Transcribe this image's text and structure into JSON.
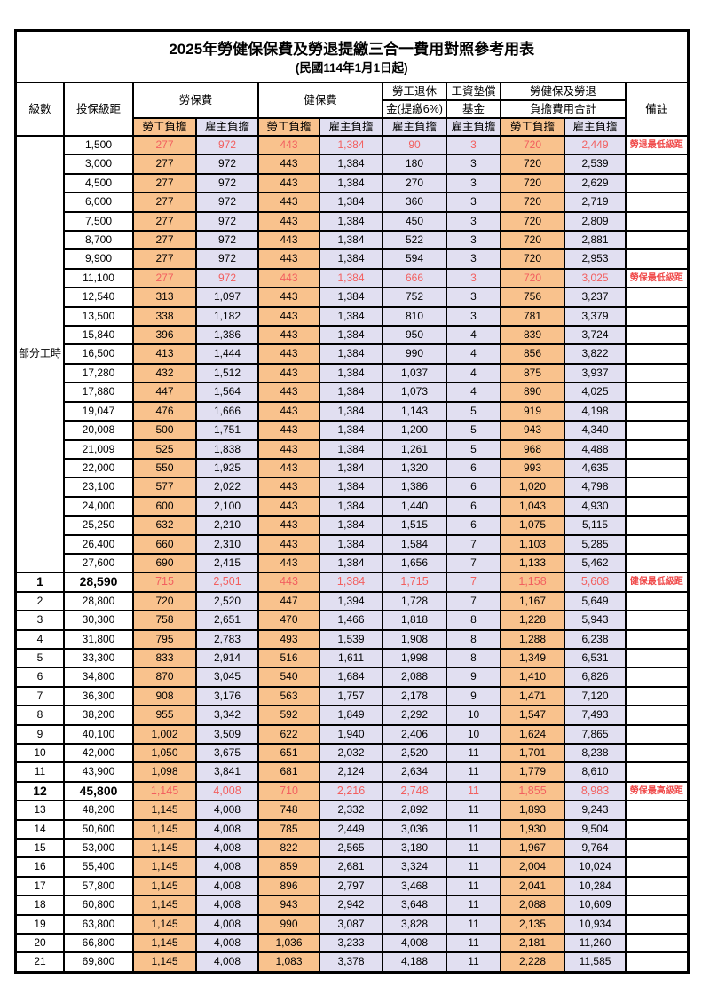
{
  "title": "2025年勞健保保費及勞退提繳三合一費用對照參考用表",
  "subtitle": "(民國114年1月1日起)",
  "columns": {
    "level": "級數",
    "bracket": "投保級距",
    "labor_group": "勞保費",
    "health_group": "健保費",
    "pension_line1": "勞工退休",
    "pension_line2": "金(提繳6%)",
    "wage_fund_line1": "工資墊償",
    "wage_fund_line2": "基金",
    "total_line1": "勞健保及勞退",
    "total_line2": "負擔費用合計",
    "remark": "備註",
    "employee_share": "勞工負擔",
    "employer_share": "雇主負擔"
  },
  "part_time": {
    "label": "部分工時",
    "row_span": 23
  },
  "colors": {
    "employee_bg": "#F9C28D",
    "employer_bg": "#E1DFF1",
    "highlight_red": "#F25F5F",
    "remark_red": "#F04A4A",
    "border": "#000000"
  },
  "rows": [
    {
      "level": "",
      "bracket": "1,500",
      "labor_emp": "277",
      "labor_er": "972",
      "health_emp": "443",
      "health_er": "1,384",
      "pension_er": "90",
      "wage_er": "3",
      "total_emp": "720",
      "total_er": "2,449",
      "remark": "勞退最低級距",
      "red": true,
      "bold": false
    },
    {
      "level": "",
      "bracket": "3,000",
      "labor_emp": "277",
      "labor_er": "972",
      "health_emp": "443",
      "health_er": "1,384",
      "pension_er": "180",
      "wage_er": "3",
      "total_emp": "720",
      "total_er": "2,539",
      "remark": "",
      "red": false,
      "bold": false
    },
    {
      "level": "",
      "bracket": "4,500",
      "labor_emp": "277",
      "labor_er": "972",
      "health_emp": "443",
      "health_er": "1,384",
      "pension_er": "270",
      "wage_er": "3",
      "total_emp": "720",
      "total_er": "2,629",
      "remark": "",
      "red": false,
      "bold": false
    },
    {
      "level": "",
      "bracket": "6,000",
      "labor_emp": "277",
      "labor_er": "972",
      "health_emp": "443",
      "health_er": "1,384",
      "pension_er": "360",
      "wage_er": "3",
      "total_emp": "720",
      "total_er": "2,719",
      "remark": "",
      "red": false,
      "bold": false
    },
    {
      "level": "",
      "bracket": "7,500",
      "labor_emp": "277",
      "labor_er": "972",
      "health_emp": "443",
      "health_er": "1,384",
      "pension_er": "450",
      "wage_er": "3",
      "total_emp": "720",
      "total_er": "2,809",
      "remark": "",
      "red": false,
      "bold": false
    },
    {
      "level": "",
      "bracket": "8,700",
      "labor_emp": "277",
      "labor_er": "972",
      "health_emp": "443",
      "health_er": "1,384",
      "pension_er": "522",
      "wage_er": "3",
      "total_emp": "720",
      "total_er": "2,881",
      "remark": "",
      "red": false,
      "bold": false
    },
    {
      "level": "",
      "bracket": "9,900",
      "labor_emp": "277",
      "labor_er": "972",
      "health_emp": "443",
      "health_er": "1,384",
      "pension_er": "594",
      "wage_er": "3",
      "total_emp": "720",
      "total_er": "2,953",
      "remark": "",
      "red": false,
      "bold": false
    },
    {
      "level": "",
      "bracket": "11,100",
      "labor_emp": "277",
      "labor_er": "972",
      "health_emp": "443",
      "health_er": "1,384",
      "pension_er": "666",
      "wage_er": "3",
      "total_emp": "720",
      "total_er": "3,025",
      "remark": "勞保最低級距",
      "red": true,
      "bold": false
    },
    {
      "level": "",
      "bracket": "12,540",
      "labor_emp": "313",
      "labor_er": "1,097",
      "health_emp": "443",
      "health_er": "1,384",
      "pension_er": "752",
      "wage_er": "3",
      "total_emp": "756",
      "total_er": "3,237",
      "remark": "",
      "red": false,
      "bold": false
    },
    {
      "level": "",
      "bracket": "13,500",
      "labor_emp": "338",
      "labor_er": "1,182",
      "health_emp": "443",
      "health_er": "1,384",
      "pension_er": "810",
      "wage_er": "3",
      "total_emp": "781",
      "total_er": "3,379",
      "remark": "",
      "red": false,
      "bold": false
    },
    {
      "level": "",
      "bracket": "15,840",
      "labor_emp": "396",
      "labor_er": "1,386",
      "health_emp": "443",
      "health_er": "1,384",
      "pension_er": "950",
      "wage_er": "4",
      "total_emp": "839",
      "total_er": "3,724",
      "remark": "",
      "red": false,
      "bold": false
    },
    {
      "level": "",
      "bracket": "16,500",
      "labor_emp": "413",
      "labor_er": "1,444",
      "health_emp": "443",
      "health_er": "1,384",
      "pension_er": "990",
      "wage_er": "4",
      "total_emp": "856",
      "total_er": "3,822",
      "remark": "",
      "red": false,
      "bold": false
    },
    {
      "level": "",
      "bracket": "17,280",
      "labor_emp": "432",
      "labor_er": "1,512",
      "health_emp": "443",
      "health_er": "1,384",
      "pension_er": "1,037",
      "wage_er": "4",
      "total_emp": "875",
      "total_er": "3,937",
      "remark": "",
      "red": false,
      "bold": false
    },
    {
      "level": "",
      "bracket": "17,880",
      "labor_emp": "447",
      "labor_er": "1,564",
      "health_emp": "443",
      "health_er": "1,384",
      "pension_er": "1,073",
      "wage_er": "4",
      "total_emp": "890",
      "total_er": "4,025",
      "remark": "",
      "red": false,
      "bold": false
    },
    {
      "level": "",
      "bracket": "19,047",
      "labor_emp": "476",
      "labor_er": "1,666",
      "health_emp": "443",
      "health_er": "1,384",
      "pension_er": "1,143",
      "wage_er": "5",
      "total_emp": "919",
      "total_er": "4,198",
      "remark": "",
      "red": false,
      "bold": false
    },
    {
      "level": "",
      "bracket": "20,008",
      "labor_emp": "500",
      "labor_er": "1,751",
      "health_emp": "443",
      "health_er": "1,384",
      "pension_er": "1,200",
      "wage_er": "5",
      "total_emp": "943",
      "total_er": "4,340",
      "remark": "",
      "red": false,
      "bold": false
    },
    {
      "level": "",
      "bracket": "21,009",
      "labor_emp": "525",
      "labor_er": "1,838",
      "health_emp": "443",
      "health_er": "1,384",
      "pension_er": "1,261",
      "wage_er": "5",
      "total_emp": "968",
      "total_er": "4,488",
      "remark": "",
      "red": false,
      "bold": false
    },
    {
      "level": "",
      "bracket": "22,000",
      "labor_emp": "550",
      "labor_er": "1,925",
      "health_emp": "443",
      "health_er": "1,384",
      "pension_er": "1,320",
      "wage_er": "6",
      "total_emp": "993",
      "total_er": "4,635",
      "remark": "",
      "red": false,
      "bold": false
    },
    {
      "level": "",
      "bracket": "23,100",
      "labor_emp": "577",
      "labor_er": "2,022",
      "health_emp": "443",
      "health_er": "1,384",
      "pension_er": "1,386",
      "wage_er": "6",
      "total_emp": "1,020",
      "total_er": "4,798",
      "remark": "",
      "red": false,
      "bold": false
    },
    {
      "level": "",
      "bracket": "24,000",
      "labor_emp": "600",
      "labor_er": "2,100",
      "health_emp": "443",
      "health_er": "1,384",
      "pension_er": "1,440",
      "wage_er": "6",
      "total_emp": "1,043",
      "total_er": "4,930",
      "remark": "",
      "red": false,
      "bold": false
    },
    {
      "level": "",
      "bracket": "25,250",
      "labor_emp": "632",
      "labor_er": "2,210",
      "health_emp": "443",
      "health_er": "1,384",
      "pension_er": "1,515",
      "wage_er": "6",
      "total_emp": "1,075",
      "total_er": "5,115",
      "remark": "",
      "red": false,
      "bold": false
    },
    {
      "level": "",
      "bracket": "26,400",
      "labor_emp": "660",
      "labor_er": "2,310",
      "health_emp": "443",
      "health_er": "1,384",
      "pension_er": "1,584",
      "wage_er": "7",
      "total_emp": "1,103",
      "total_er": "5,285",
      "remark": "",
      "red": false,
      "bold": false
    },
    {
      "level": "",
      "bracket": "27,600",
      "labor_emp": "690",
      "labor_er": "2,415",
      "health_emp": "443",
      "health_er": "1,384",
      "pension_er": "1,656",
      "wage_er": "7",
      "total_emp": "1,133",
      "total_er": "5,462",
      "remark": "",
      "red": false,
      "bold": false
    },
    {
      "level": "1",
      "bracket": "28,590",
      "labor_emp": "715",
      "labor_er": "2,501",
      "health_emp": "443",
      "health_er": "1,384",
      "pension_er": "1,715",
      "wage_er": "7",
      "total_emp": "1,158",
      "total_er": "5,608",
      "remark": "健保最低級距",
      "red": true,
      "bold": true
    },
    {
      "level": "2",
      "bracket": "28,800",
      "labor_emp": "720",
      "labor_er": "2,520",
      "health_emp": "447",
      "health_er": "1,394",
      "pension_er": "1,728",
      "wage_er": "7",
      "total_emp": "1,167",
      "total_er": "5,649",
      "remark": "",
      "red": false,
      "bold": false
    },
    {
      "level": "3",
      "bracket": "30,300",
      "labor_emp": "758",
      "labor_er": "2,651",
      "health_emp": "470",
      "health_er": "1,466",
      "pension_er": "1,818",
      "wage_er": "8",
      "total_emp": "1,228",
      "total_er": "5,943",
      "remark": "",
      "red": false,
      "bold": false
    },
    {
      "level": "4",
      "bracket": "31,800",
      "labor_emp": "795",
      "labor_er": "2,783",
      "health_emp": "493",
      "health_er": "1,539",
      "pension_er": "1,908",
      "wage_er": "8",
      "total_emp": "1,288",
      "total_er": "6,238",
      "remark": "",
      "red": false,
      "bold": false
    },
    {
      "level": "5",
      "bracket": "33,300",
      "labor_emp": "833",
      "labor_er": "2,914",
      "health_emp": "516",
      "health_er": "1,611",
      "pension_er": "1,998",
      "wage_er": "8",
      "total_emp": "1,349",
      "total_er": "6,531",
      "remark": "",
      "red": false,
      "bold": false
    },
    {
      "level": "6",
      "bracket": "34,800",
      "labor_emp": "870",
      "labor_er": "3,045",
      "health_emp": "540",
      "health_er": "1,684",
      "pension_er": "2,088",
      "wage_er": "9",
      "total_emp": "1,410",
      "total_er": "6,826",
      "remark": "",
      "red": false,
      "bold": false
    },
    {
      "level": "7",
      "bracket": "36,300",
      "labor_emp": "908",
      "labor_er": "3,176",
      "health_emp": "563",
      "health_er": "1,757",
      "pension_er": "2,178",
      "wage_er": "9",
      "total_emp": "1,471",
      "total_er": "7,120",
      "remark": "",
      "red": false,
      "bold": false
    },
    {
      "level": "8",
      "bracket": "38,200",
      "labor_emp": "955",
      "labor_er": "3,342",
      "health_emp": "592",
      "health_er": "1,849",
      "pension_er": "2,292",
      "wage_er": "10",
      "total_emp": "1,547",
      "total_er": "7,493",
      "remark": "",
      "red": false,
      "bold": false
    },
    {
      "level": "9",
      "bracket": "40,100",
      "labor_emp": "1,002",
      "labor_er": "3,509",
      "health_emp": "622",
      "health_er": "1,940",
      "pension_er": "2,406",
      "wage_er": "10",
      "total_emp": "1,624",
      "total_er": "7,865",
      "remark": "",
      "red": false,
      "bold": false
    },
    {
      "level": "10",
      "bracket": "42,000",
      "labor_emp": "1,050",
      "labor_er": "3,675",
      "health_emp": "651",
      "health_er": "2,032",
      "pension_er": "2,520",
      "wage_er": "11",
      "total_emp": "1,701",
      "total_er": "8,238",
      "remark": "",
      "red": false,
      "bold": false
    },
    {
      "level": "11",
      "bracket": "43,900",
      "labor_emp": "1,098",
      "labor_er": "3,841",
      "health_emp": "681",
      "health_er": "2,124",
      "pension_er": "2,634",
      "wage_er": "11",
      "total_emp": "1,779",
      "total_er": "8,610",
      "remark": "",
      "red": false,
      "bold": false
    },
    {
      "level": "12",
      "bracket": "45,800",
      "labor_emp": "1,145",
      "labor_er": "4,008",
      "health_emp": "710",
      "health_er": "2,216",
      "pension_er": "2,748",
      "wage_er": "11",
      "total_emp": "1,855",
      "total_er": "8,983",
      "remark": "勞保最高級距",
      "red": true,
      "bold": true
    },
    {
      "level": "13",
      "bracket": "48,200",
      "labor_emp": "1,145",
      "labor_er": "4,008",
      "health_emp": "748",
      "health_er": "2,332",
      "pension_er": "2,892",
      "wage_er": "11",
      "total_emp": "1,893",
      "total_er": "9,243",
      "remark": "",
      "red": false,
      "bold": false
    },
    {
      "level": "14",
      "bracket": "50,600",
      "labor_emp": "1,145",
      "labor_er": "4,008",
      "health_emp": "785",
      "health_er": "2,449",
      "pension_er": "3,036",
      "wage_er": "11",
      "total_emp": "1,930",
      "total_er": "9,504",
      "remark": "",
      "red": false,
      "bold": false
    },
    {
      "level": "15",
      "bracket": "53,000",
      "labor_emp": "1,145",
      "labor_er": "4,008",
      "health_emp": "822",
      "health_er": "2,565",
      "pension_er": "3,180",
      "wage_er": "11",
      "total_emp": "1,967",
      "total_er": "9,764",
      "remark": "",
      "red": false,
      "bold": false
    },
    {
      "level": "16",
      "bracket": "55,400",
      "labor_emp": "1,145",
      "labor_er": "4,008",
      "health_emp": "859",
      "health_er": "2,681",
      "pension_er": "3,324",
      "wage_er": "11",
      "total_emp": "2,004",
      "total_er": "10,024",
      "remark": "",
      "red": false,
      "bold": false
    },
    {
      "level": "17",
      "bracket": "57,800",
      "labor_emp": "1,145",
      "labor_er": "4,008",
      "health_emp": "896",
      "health_er": "2,797",
      "pension_er": "3,468",
      "wage_er": "11",
      "total_emp": "2,041",
      "total_er": "10,284",
      "remark": "",
      "red": false,
      "bold": false
    },
    {
      "level": "18",
      "bracket": "60,800",
      "labor_emp": "1,145",
      "labor_er": "4,008",
      "health_emp": "943",
      "health_er": "2,942",
      "pension_er": "3,648",
      "wage_er": "11",
      "total_emp": "2,088",
      "total_er": "10,609",
      "remark": "",
      "red": false,
      "bold": false
    },
    {
      "level": "19",
      "bracket": "63,800",
      "labor_emp": "1,145",
      "labor_er": "4,008",
      "health_emp": "990",
      "health_er": "3,087",
      "pension_er": "3,828",
      "wage_er": "11",
      "total_emp": "2,135",
      "total_er": "10,934",
      "remark": "",
      "red": false,
      "bold": false
    },
    {
      "level": "20",
      "bracket": "66,800",
      "labor_emp": "1,145",
      "labor_er": "4,008",
      "health_emp": "1,036",
      "health_er": "3,233",
      "pension_er": "4,008",
      "wage_er": "11",
      "total_emp": "2,181",
      "total_er": "11,260",
      "remark": "",
      "red": false,
      "bold": false
    },
    {
      "level": "21",
      "bracket": "69,800",
      "labor_emp": "1,145",
      "labor_er": "4,008",
      "health_emp": "1,083",
      "health_er": "3,378",
      "pension_er": "4,188",
      "wage_er": "11",
      "total_emp": "2,228",
      "total_er": "11,585",
      "remark": "",
      "red": false,
      "bold": false
    }
  ]
}
